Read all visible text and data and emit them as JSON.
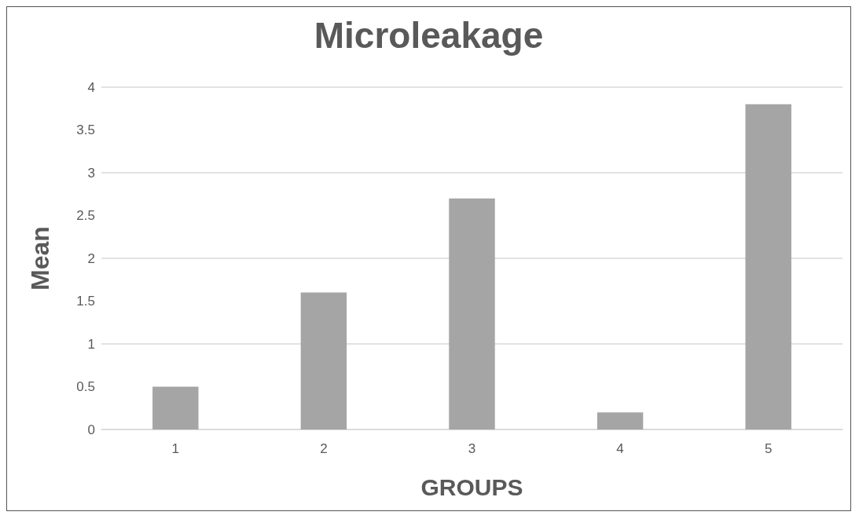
{
  "chart_data": {
    "type": "bar",
    "title": "Microleakage",
    "xlabel": "GROUPS",
    "ylabel": "Mean",
    "categories": [
      "1",
      "2",
      "3",
      "4",
      "5"
    ],
    "values": [
      0.5,
      1.6,
      2.7,
      0.2,
      3.8
    ],
    "color": "#a5a5a5",
    "ylim": [
      0,
      4
    ],
    "yticks": [
      0,
      0.5,
      1,
      1.5,
      2,
      2.5,
      3,
      3.5,
      4
    ],
    "grid": "y"
  }
}
